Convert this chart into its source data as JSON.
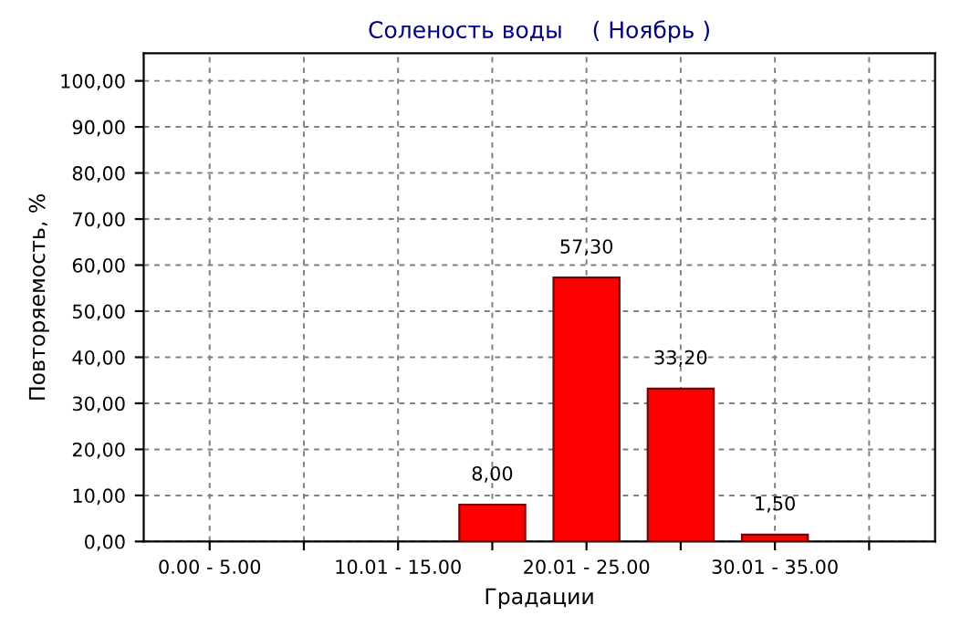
{
  "chart_data": {
    "type": "bar",
    "title": "Соленость воды    ( Ноябрь )",
    "xlabel": "Градации",
    "ylabel": "Повторяемость, %",
    "categories": [
      "0.00 - 5.00",
      null,
      "10.01 - 15.00",
      null,
      "20.01 - 25.00",
      null,
      "30.01 - 35.00",
      null
    ],
    "values": [
      null,
      null,
      null,
      8.0,
      57.3,
      33.2,
      1.5,
      null
    ],
    "value_labels": [
      null,
      null,
      null,
      "8,00",
      "57,30",
      "33,20",
      "1,50",
      null
    ],
    "color": "#ff0000",
    "ylim": [
      0,
      106
    ],
    "yticks": [
      {
        "value": 0,
        "label": "0,00"
      },
      {
        "value": 10,
        "label": "10,00"
      },
      {
        "value": 20,
        "label": "20,00"
      },
      {
        "value": 30,
        "label": "30,00"
      },
      {
        "value": 40,
        "label": "40,00"
      },
      {
        "value": 50,
        "label": "50,00"
      },
      {
        "value": 60,
        "label": "60,00"
      },
      {
        "value": 70,
        "label": "70,00"
      },
      {
        "value": 80,
        "label": "80,00"
      },
      {
        "value": 90,
        "label": "90,00"
      },
      {
        "value": 100,
        "label": "100,00"
      }
    ],
    "grid": true
  }
}
